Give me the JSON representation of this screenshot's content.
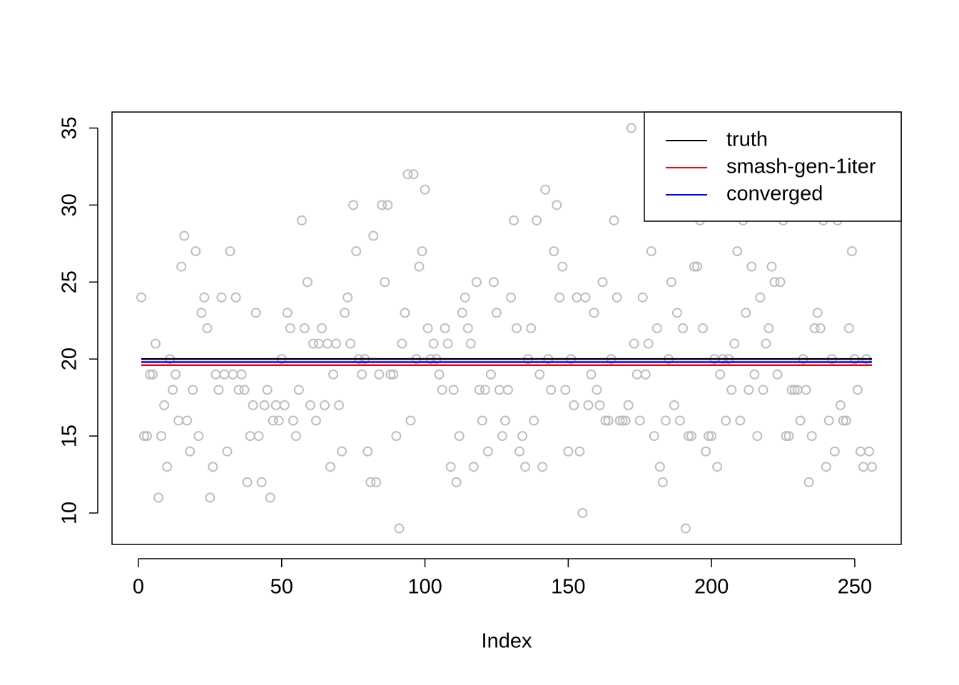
{
  "chart_data": {
    "type": "scatter",
    "x_label": "Index",
    "xlim": [
      -9.2,
      266.2
    ],
    "xticks": [
      0,
      50,
      100,
      150,
      200,
      250
    ],
    "ylim": [
      7.96,
      36.04
    ],
    "yticks": [
      10,
      15,
      20,
      25,
      30,
      35
    ],
    "point_color": "#bebebe",
    "values": [
      24,
      15,
      15,
      19,
      19,
      21,
      11,
      15,
      17,
      13,
      20,
      18,
      19,
      16,
      26,
      28,
      16,
      14,
      18,
      27,
      15,
      23,
      24,
      22,
      11,
      13,
      19,
      18,
      24,
      19,
      14,
      27,
      19,
      24,
      18,
      19,
      18,
      12,
      15,
      17,
      23,
      15,
      12,
      17,
      18,
      11,
      16,
      17,
      16,
      20,
      17,
      23,
      22,
      16,
      15,
      18,
      29,
      22,
      25,
      17,
      21,
      16,
      21,
      22,
      17,
      21,
      13,
      19,
      21,
      17,
      14,
      23,
      24,
      21,
      30,
      27,
      20,
      19,
      20,
      14,
      12,
      28,
      12,
      19,
      30,
      25,
      30,
      19,
      19,
      15,
      9,
      21,
      23,
      32,
      16,
      32,
      20,
      26,
      27,
      31,
      22,
      20,
      21,
      20,
      19,
      18,
      22,
      21,
      13,
      18,
      12,
      15,
      23,
      24,
      22,
      21,
      13,
      25,
      18,
      16,
      18,
      14,
      19,
      25,
      23,
      18,
      15,
      16,
      18,
      24,
      29,
      22,
      14,
      15,
      13,
      20,
      22,
      16,
      29,
      19,
      13,
      31,
      20,
      18,
      27,
      30,
      24,
      26,
      18,
      14,
      20,
      17,
      24,
      14,
      10,
      24,
      17,
      19,
      23,
      18,
      17,
      25,
      16,
      16,
      20,
      29,
      24,
      16,
      16,
      16,
      17,
      35,
      21,
      19,
      16,
      24,
      19,
      21,
      27,
      15,
      22,
      13,
      12,
      16,
      20,
      25,
      17,
      23,
      16,
      22,
      9,
      15,
      15,
      26,
      26,
      29,
      22,
      14,
      15,
      15,
      20,
      13,
      19,
      20,
      16,
      20,
      18,
      21,
      27,
      16,
      29,
      23,
      18,
      26,
      19,
      15,
      24,
      18,
      21,
      22,
      26,
      25,
      19,
      25,
      29,
      15,
      15,
      18,
      18,
      18,
      16,
      20,
      18,
      12,
      15,
      22,
      23,
      22,
      29,
      13,
      16,
      20,
      14,
      29,
      17,
      16,
      16,
      22,
      27,
      20,
      18,
      14,
      13,
      20,
      14,
      13
    ],
    "lines": [
      {
        "name": "truth",
        "color": "#000000",
        "x": [
          1,
          256
        ],
        "values": [
          20,
          20
        ]
      },
      {
        "name": "smash-gen-1iter",
        "color": "#ff0000",
        "x": [
          1,
          256
        ],
        "values": [
          19.6,
          19.6
        ]
      },
      {
        "name": "converged",
        "color": "#0000ff",
        "x": [
          1,
          256
        ],
        "values": [
          19.8,
          19.8
        ]
      }
    ],
    "legend_position": "top-right"
  }
}
